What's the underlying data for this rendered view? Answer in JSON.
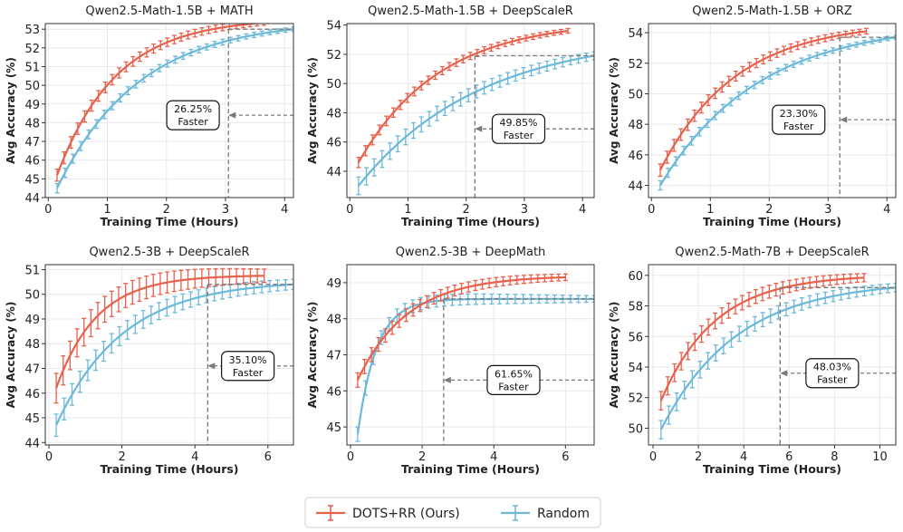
{
  "colors": {
    "dots": "#E8614D",
    "random": "#6CB9D9",
    "grid": "#e9e9e9",
    "dash": "#7a7a7a"
  },
  "legend": [
    {
      "key": "dots",
      "label": "DOTS+RR (Ours)"
    },
    {
      "key": "random",
      "label": "Random"
    }
  ],
  "chart_data": [
    {
      "type": "line",
      "title": "Qwen2.5-Math-1.5B + MATH",
      "xlabel": "Training Time (Hours)",
      "ylabel": "Avg Accuracy (%)",
      "xlim": [
        -0.05,
        4.15
      ],
      "ylim": [
        44.0,
        53.3
      ],
      "xticks": [
        0,
        1,
        2,
        3,
        4
      ],
      "yticks": [
        44,
        45,
        46,
        47,
        48,
        49,
        50,
        51,
        52,
        53
      ],
      "grid": true,
      "dots": {
        "x0": 0.15,
        "x1": 3.65,
        "y0": 45.2,
        "y1": 53.35,
        "k": 1.0,
        "err": 0.32
      },
      "random": {
        "x0": 0.15,
        "x1": 4.15,
        "y0": 44.5,
        "y1": 53.0,
        "k": 0.72,
        "err": 0.25
      },
      "ref": {
        "x": 3.05,
        "y": 53.0
      },
      "annotation": {
        "text": [
          "26.25%",
          "Faster"
        ],
        "x": 2.45,
        "y": 48.4
      }
    },
    {
      "type": "line",
      "title": "Qwen2.5-Math-1.5B + DeepScaleR",
      "xlabel": "Training Time (Hours)",
      "ylabel": "Avg Accuracy (%)",
      "xlim": [
        -0.05,
        4.2
      ],
      "ylim": [
        42.2,
        54.1
      ],
      "xticks": [
        0,
        1,
        2,
        3,
        4
      ],
      "yticks": [
        44,
        46,
        48,
        50,
        52,
        54
      ],
      "grid": true,
      "dots": {
        "x0": 0.15,
        "x1": 3.75,
        "y0": 44.6,
        "y1": 53.6,
        "k": 0.72,
        "err": 0.35
      },
      "random": {
        "x0": 0.15,
        "x1": 4.2,
        "y0": 43.0,
        "y1": 51.9,
        "k": 0.48,
        "err": 0.6
      },
      "ref": {
        "x": 2.15,
        "y": 51.9
      },
      "annotation": {
        "text": [
          "49.85%",
          "Faster"
        ],
        "x": 2.9,
        "y": 46.9
      }
    },
    {
      "type": "line",
      "title": "Qwen2.5-Math-1.5B + ORZ",
      "xlabel": "Training Time (Hours)",
      "ylabel": "Avg Accuracy (%)",
      "xlim": [
        -0.05,
        4.15
      ],
      "ylim": [
        43.2,
        54.6
      ],
      "xticks": [
        0,
        1,
        2,
        3,
        4
      ],
      "yticks": [
        44,
        46,
        48,
        50,
        52,
        54
      ],
      "grid": true,
      "dots": {
        "x0": 0.15,
        "x1": 3.65,
        "y0": 45.0,
        "y1": 54.1,
        "k": 0.78,
        "err": 0.4
      },
      "random": {
        "x0": 0.15,
        "x1": 4.15,
        "y0": 44.0,
        "y1": 53.7,
        "k": 0.6,
        "err": 0.3
      },
      "ref": {
        "x": 3.2,
        "y": 53.7
      },
      "annotation": {
        "text": [
          "23.30%",
          "Faster"
        ],
        "x": 2.5,
        "y": 48.3
      }
    },
    {
      "type": "line",
      "title": "Qwen2.5-3B + DeepScaleR",
      "xlabel": "Training Time (Hours)",
      "ylabel": "Avg Accuracy (%)",
      "xlim": [
        -0.1,
        6.7
      ],
      "ylim": [
        43.9,
        51.2
      ],
      "xticks": [
        0,
        2,
        4,
        6
      ],
      "yticks": [
        44,
        45,
        46,
        47,
        48,
        49,
        50,
        51
      ],
      "grid": true,
      "dots": {
        "x0": 0.2,
        "x1": 5.9,
        "y0": 46.2,
        "y1": 50.75,
        "k": 0.9,
        "err": 0.6
      },
      "random": {
        "x0": 0.2,
        "x1": 6.7,
        "y0": 44.7,
        "y1": 50.4,
        "k": 0.55,
        "err": 0.45
      },
      "ref": {
        "x": 4.35,
        "y": 50.4
      },
      "annotation": {
        "text": [
          "35.10%",
          "Faster"
        ],
        "x": 5.45,
        "y": 47.1
      }
    },
    {
      "type": "line",
      "title": "Qwen2.5-3B + DeepMath",
      "xlabel": "Training Time (Hours)",
      "ylabel": "Avg Accuracy (%)",
      "xlim": [
        -0.1,
        6.8
      ],
      "ylim": [
        44.5,
        49.5
      ],
      "xticks": [
        0,
        2,
        4,
        6
      ],
      "yticks": [
        45,
        46,
        47,
        48,
        49
      ],
      "grid": true,
      "dots": {
        "x0": 0.2,
        "x1": 6.0,
        "y0": 46.3,
        "y1": 49.15,
        "k": 0.72,
        "err": 0.2
      },
      "random": {
        "x0": 0.2,
        "x1": 6.8,
        "y0": 44.8,
        "y1": 48.55,
        "k": 1.9,
        "err": 0.2
      },
      "ref": {
        "x": 2.6,
        "y": 48.55
      },
      "annotation": {
        "text": [
          "61.65%",
          "Faster"
        ],
        "x": 4.55,
        "y": 46.3
      }
    },
    {
      "type": "line",
      "title": "Qwen2.5-Math-7B + DeepScaleR",
      "xlabel": "Training Time (Hours)",
      "ylabel": "Avg Accuracy (%)",
      "xlim": [
        -0.2,
        10.7
      ],
      "ylim": [
        48.9,
        60.7
      ],
      "xticks": [
        0,
        2,
        4,
        6,
        8,
        10
      ],
      "yticks": [
        50,
        52,
        54,
        56,
        58,
        60
      ],
      "grid": true,
      "dots": {
        "x0": 0.35,
        "x1": 9.3,
        "y0": 51.8,
        "y1": 59.85,
        "k": 0.42,
        "err": 0.6
      },
      "random": {
        "x0": 0.35,
        "x1": 10.7,
        "y0": 49.9,
        "y1": 59.2,
        "k": 0.3,
        "err": 0.6
      },
      "ref": {
        "x": 5.6,
        "y": 59.2
      },
      "annotation": {
        "text": [
          "48.03%",
          "Faster"
        ],
        "x": 7.9,
        "y": 53.6
      }
    }
  ]
}
